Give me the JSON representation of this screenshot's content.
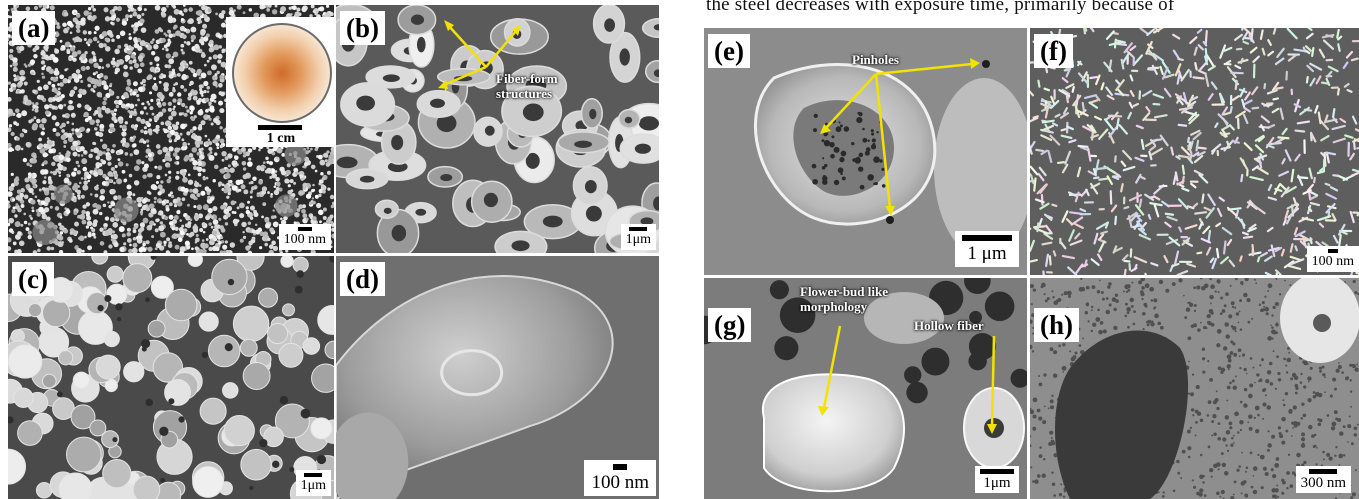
{
  "caption": "the steel decreases with exposure time, primarily because of",
  "panels": {
    "a": {
      "label": "(a)",
      "scale": "100 nm",
      "inset_scale": "1 cm"
    },
    "b": {
      "label": "(b)",
      "scale": "1μm",
      "annotation": "Fiber-form\nstructures"
    },
    "c": {
      "label": "(c)",
      "scale": "1μm"
    },
    "d": {
      "label": "(d)",
      "scale": "100 nm"
    },
    "e": {
      "label": "(e)",
      "scale": "1 μm",
      "annotation": "Pinholes"
    },
    "f": {
      "label": "(f)",
      "scale": "100 nm"
    },
    "g": {
      "label": "(g)",
      "scale": "1μm",
      "annotation_left": "Flower-bud like\nmorphology",
      "annotation_right": "Hollow fiber"
    },
    "h": {
      "label": "(h)",
      "scale": "300 nm"
    }
  },
  "colors": {
    "arrow": "#f2e200",
    "label_bg": "#ffffff"
  }
}
